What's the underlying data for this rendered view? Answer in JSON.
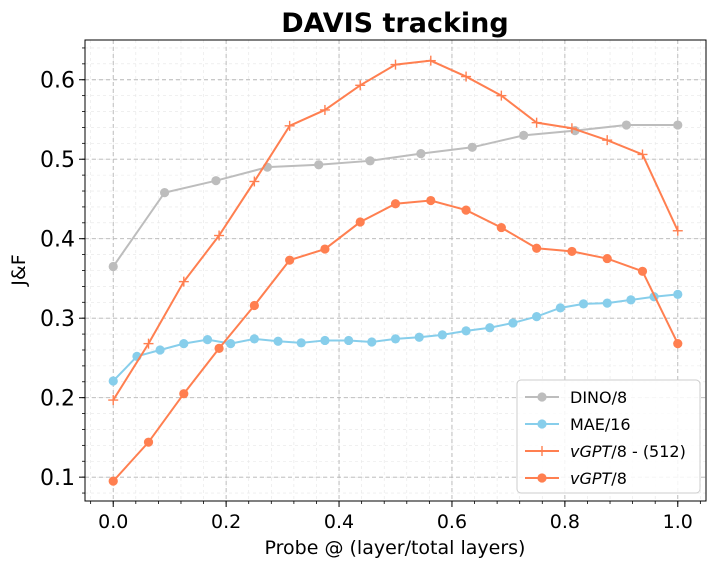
{
  "chart_data": {
    "type": "line",
    "title": "DAVIS tracking",
    "xlabel": "Probe @ (layer/total layers)",
    "ylabel": "J&F",
    "xlim": [
      -0.05,
      1.05
    ],
    "ylim": [
      0.07,
      0.65
    ],
    "x_ticks": [
      "0.0",
      "0.2",
      "0.4",
      "0.6",
      "0.8",
      "1.0"
    ],
    "x_tick_values": [
      0.0,
      0.2,
      0.4,
      0.6,
      0.8,
      1.0
    ],
    "y_ticks": [
      "0.1",
      "0.2",
      "0.3",
      "0.4",
      "0.5",
      "0.6"
    ],
    "y_tick_values": [
      0.1,
      0.2,
      0.3,
      0.4,
      0.5,
      0.6
    ],
    "grid": true,
    "legend_position": "lower-right",
    "series": [
      {
        "name": "DINO/8",
        "color": "#bdbdbd",
        "marker": "circle",
        "x": [
          0.0,
          0.091,
          0.182,
          0.273,
          0.364,
          0.455,
          0.545,
          0.636,
          0.727,
          0.818,
          0.909,
          1.0
        ],
        "y": [
          0.365,
          0.458,
          0.473,
          0.49,
          0.493,
          0.498,
          0.507,
          0.515,
          0.53,
          0.536,
          0.543,
          0.543
        ]
      },
      {
        "name": "MAE/16",
        "color": "#87ceeb",
        "marker": "circle",
        "x": [
          0.0,
          0.042,
          0.083,
          0.125,
          0.167,
          0.208,
          0.25,
          0.292,
          0.333,
          0.375,
          0.417,
          0.458,
          0.5,
          0.542,
          0.583,
          0.625,
          0.667,
          0.708,
          0.75,
          0.792,
          0.833,
          0.875,
          0.917,
          0.958,
          1.0
        ],
        "y": [
          0.221,
          0.252,
          0.26,
          0.268,
          0.273,
          0.268,
          0.274,
          0.271,
          0.269,
          0.272,
          0.272,
          0.27,
          0.274,
          0.276,
          0.279,
          0.284,
          0.288,
          0.294,
          0.302,
          0.313,
          0.318,
          0.319,
          0.323,
          0.327,
          0.33
        ]
      },
      {
        "name": "vGPT/8 - (512)",
        "name_italic": "vGPT",
        "name_rest": "/8 - (512)",
        "color": "#ff7f50",
        "marker": "plus",
        "x": [
          0.0,
          0.0625,
          0.125,
          0.1875,
          0.25,
          0.3125,
          0.375,
          0.4375,
          0.5,
          0.5625,
          0.625,
          0.6875,
          0.75,
          0.8125,
          0.875,
          0.9375,
          1.0
        ],
        "y": [
          0.197,
          0.268,
          0.346,
          0.404,
          0.472,
          0.542,
          0.562,
          0.593,
          0.619,
          0.624,
          0.604,
          0.58,
          0.546,
          0.539,
          0.524,
          0.506,
          0.41
        ]
      },
      {
        "name": "vGPT/8",
        "name_italic": "vGPT",
        "name_rest": "/8",
        "color": "#ff7f50",
        "marker": "circle",
        "x": [
          0.0,
          0.0625,
          0.125,
          0.1875,
          0.25,
          0.3125,
          0.375,
          0.4375,
          0.5,
          0.5625,
          0.625,
          0.6875,
          0.75,
          0.8125,
          0.875,
          0.9375,
          1.0
        ],
        "y": [
          0.095,
          0.144,
          0.205,
          0.262,
          0.316,
          0.373,
          0.387,
          0.421,
          0.444,
          0.448,
          0.436,
          0.414,
          0.388,
          0.384,
          0.375,
          0.359,
          0.268
        ]
      }
    ]
  }
}
